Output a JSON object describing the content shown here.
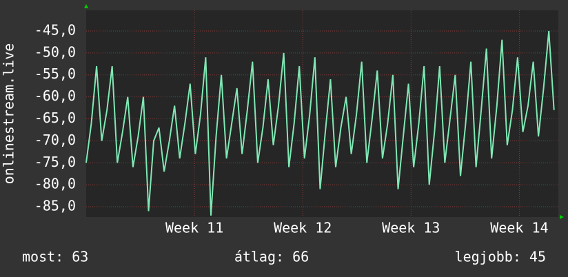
{
  "chart_data": {
    "type": "line",
    "y_label": "onlinestream.live",
    "x": [
      10,
      10.048,
      10.096,
      10.144,
      10.192,
      10.24,
      10.288,
      10.336,
      10.384,
      10.432,
      10.48,
      10.528,
      10.576,
      10.624,
      10.672,
      10.72,
      10.768,
      10.816,
      10.864,
      10.912,
      10.96,
      11.008,
      11.056,
      11.104,
      11.152,
      11.2,
      11.248,
      11.296,
      11.344,
      11.392,
      11.44,
      11.488,
      11.536,
      11.584,
      11.632,
      11.68,
      11.728,
      11.776,
      11.824,
      11.872,
      11.92,
      11.968,
      12.016,
      12.064,
      12.112,
      12.16,
      12.208,
      12.256,
      12.304,
      12.352,
      12.4,
      12.448,
      12.496,
      12.544,
      12.592,
      12.64,
      12.688,
      12.736,
      12.784,
      12.832,
      12.88,
      12.928,
      12.976,
      13.024,
      13.072,
      13.12,
      13.168,
      13.216,
      13.264,
      13.312,
      13.36,
      13.408,
      13.456,
      13.504,
      13.552,
      13.6,
      13.648,
      13.696,
      13.744,
      13.792,
      13.84,
      13.888,
      13.936,
      13.984,
      14.032,
      14.08,
      14.128,
      14.176,
      14.224,
      14.272,
      14.32
    ],
    "series": [
      {
        "name": "onlinestream.live",
        "color": "#7fe8b4",
        "values": [
          -75,
          -66,
          -53,
          -70,
          -63,
          -53,
          -75,
          -68,
          -60,
          -76,
          -69,
          -60,
          -86,
          -70,
          -67,
          -77,
          -70,
          -62,
          -74,
          -66,
          -57,
          -73,
          -64,
          -51,
          -87,
          -69,
          -55,
          -74,
          -66,
          -58,
          -73,
          -63,
          -52,
          -75,
          -67,
          -56,
          -71,
          -62,
          -50,
          -76,
          -66,
          -53,
          -74,
          -64,
          -51,
          -81,
          -68,
          -56,
          -76,
          -67,
          -60,
          -73,
          -64,
          -52,
          -75,
          -65,
          -54,
          -74,
          -66,
          -55,
          -81,
          -69,
          -57,
          -76,
          -66,
          -53,
          -80,
          -68,
          -53,
          -75,
          -65,
          -55,
          -78,
          -66,
          -52,
          -76,
          -63,
          -49,
          -74,
          -62,
          -47,
          -71,
          -63,
          -51,
          -68,
          -62,
          -52,
          -69,
          -58,
          -45,
          -63
        ]
      }
    ],
    "xlim": [
      10,
      14.36
    ],
    "xticks": [
      {
        "value": 11,
        "label": "Week 11"
      },
      {
        "value": 12,
        "label": "Week 12"
      },
      {
        "value": 13,
        "label": "Week 13"
      },
      {
        "value": 14,
        "label": "Week 14"
      }
    ],
    "ylim": [
      -87.35,
      -40.3
    ],
    "yticks": [
      {
        "value": -45,
        "label": "-45,0"
      },
      {
        "value": -50,
        "label": "-50,0"
      },
      {
        "value": -55,
        "label": "-55,0"
      },
      {
        "value": -60,
        "label": "-60,0"
      },
      {
        "value": -65,
        "label": "-65,0"
      },
      {
        "value": -70,
        "label": "-70,0"
      },
      {
        "value": -75,
        "label": "-75,0"
      },
      {
        "value": -80,
        "label": "-80,0"
      },
      {
        "value": -85,
        "label": "-85,0"
      }
    ],
    "grid": true,
    "footer": [
      "most: 63",
      "átlag: 66",
      "legjobb: 45"
    ]
  }
}
